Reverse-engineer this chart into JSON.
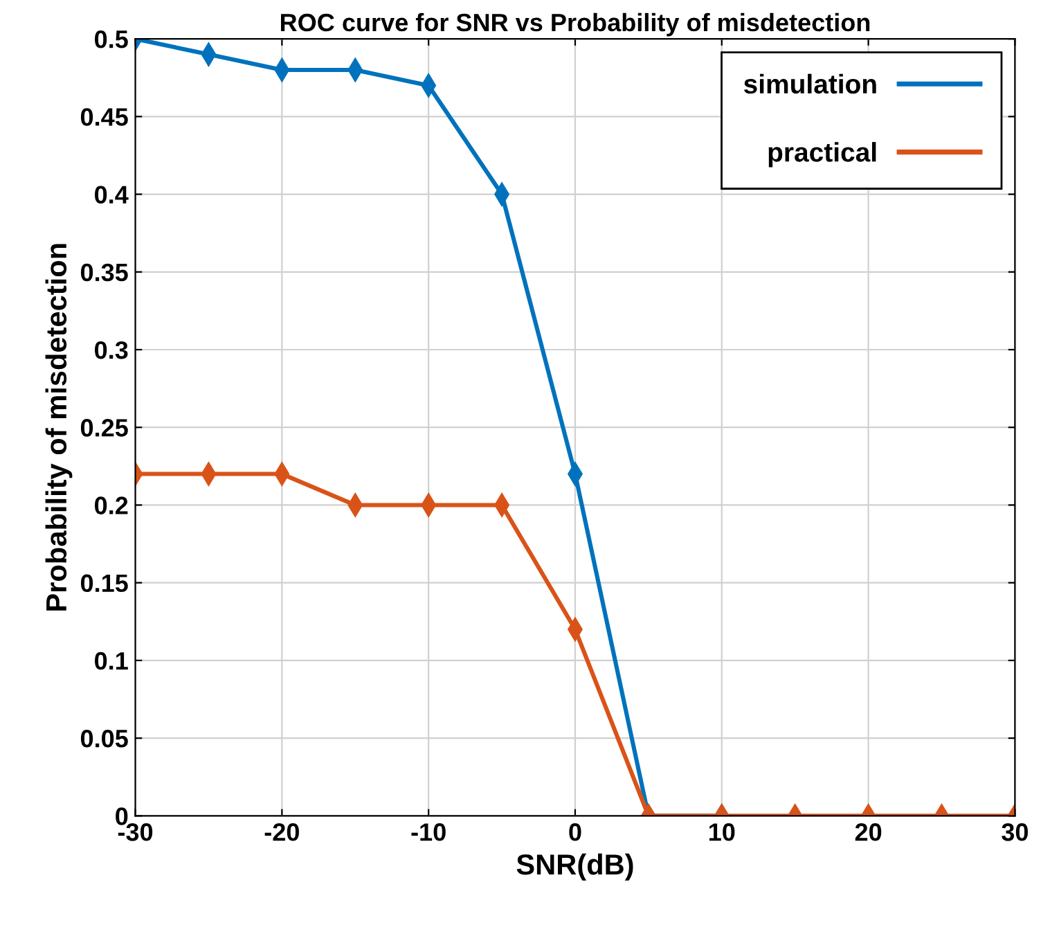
{
  "chart_data": {
    "type": "line",
    "title": "ROC curve for SNR vs Probability of misdetection",
    "xlabel": "SNR(dB)",
    "ylabel": "Probability of misdetection",
    "x": [
      -30,
      -25,
      -20,
      -15,
      -10,
      -5,
      0,
      5,
      10,
      15,
      20,
      25,
      30
    ],
    "series": [
      {
        "name": "simulation",
        "color": "#0072bd",
        "values": [
          0.5,
          0.49,
          0.48,
          0.48,
          0.47,
          0.4,
          0.22,
          0,
          0,
          null,
          null,
          null,
          null
        ]
      },
      {
        "name": "practical",
        "color": "#d95319",
        "values": [
          0.22,
          0.22,
          0.22,
          0.2,
          0.2,
          0.2,
          0.12,
          0,
          0,
          0,
          0,
          0,
          0
        ]
      }
    ],
    "xlim": [
      -30,
      30
    ],
    "xticks": [
      -30,
      -20,
      -10,
      0,
      10,
      20,
      30
    ],
    "ylim": [
      0,
      0.5
    ],
    "yticks": [
      0,
      0.05,
      0.1,
      0.15,
      0.2,
      0.25,
      0.3,
      0.35,
      0.4,
      0.45,
      0.5
    ],
    "grid": true,
    "legend": "top right",
    "marker": "diamond",
    "line_style": "solid"
  }
}
